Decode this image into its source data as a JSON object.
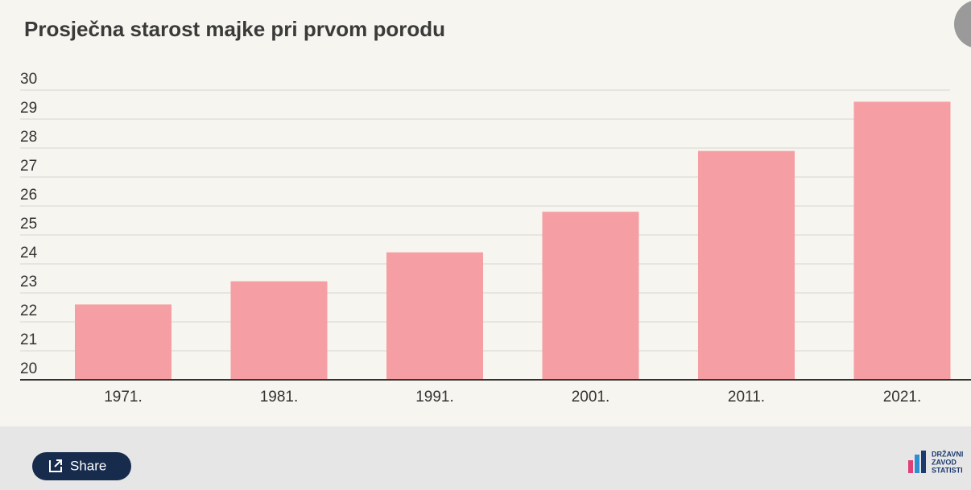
{
  "chart_data": {
    "type": "bar",
    "title": "Prosječna starost majke pri prvom porodu",
    "categories": [
      "1971.",
      "1981.",
      "1991.",
      "2001.",
      "2011.",
      "2021."
    ],
    "values": [
      22.6,
      23.4,
      24.4,
      25.8,
      27.9,
      29.6
    ],
    "color": "#f59fa4",
    "ylim": [
      20,
      30
    ],
    "yticks": [
      20,
      21,
      22,
      23,
      24,
      25,
      26,
      27,
      28,
      29,
      30
    ],
    "grid": true
  },
  "footer": {
    "share": "Share",
    "logo": [
      "DRŽAVNI",
      "ZAVOD",
      "STATISTI"
    ]
  }
}
